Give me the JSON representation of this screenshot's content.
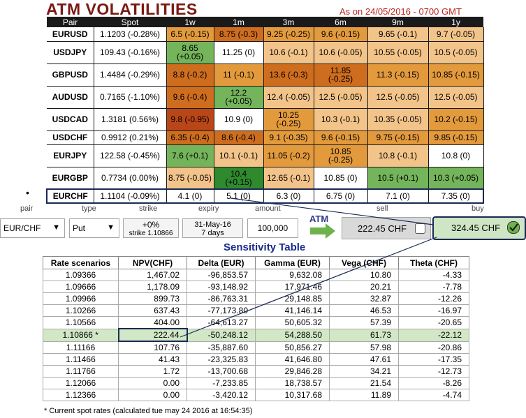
{
  "header": {
    "title": "ATM VOLATILITIES",
    "as_of": "As on 24/05/2016 - 0700 GMT"
  },
  "colors": {
    "peach": "#f3c48a",
    "orange": "#e39a3c",
    "dark_orange": "#cf6d1f",
    "red_orange": "#b94616",
    "green": "#74b45b",
    "dark_green": "#2f8a2e",
    "white": "#ffffff",
    "selection_border": "#1a2a55"
  },
  "vol_table": {
    "headers": [
      "Pair",
      "Spot",
      "1w",
      "1m",
      "3m",
      "6m",
      "9m",
      "1y"
    ],
    "rows": [
      {
        "pair": "EURUSD",
        "spot": "1.1203 (-0.28%)",
        "cells": [
          {
            "text": "6.5 (-0.15)",
            "color": "orange"
          },
          {
            "text": "8.75 (-0.3)",
            "color": "dark_orange"
          },
          {
            "text": "9.25 (-0.25)",
            "color": "orange"
          },
          {
            "text": "9.6 (-0.15)",
            "color": "orange"
          },
          {
            "text": "9.65 (-0.1)",
            "color": "peach"
          },
          {
            "text": "9.7 (-0.05)",
            "color": "peach"
          }
        ]
      },
      {
        "pair": "USDJPY",
        "spot": "109.43 (-0.16%)",
        "cells": [
          {
            "text": "8.65\n(+0.05)",
            "color": "green"
          },
          {
            "text": "11.25 (0)",
            "color": "white"
          },
          {
            "text": "10.6 (-0.1)",
            "color": "peach"
          },
          {
            "text": "10.6 (-0.05)",
            "color": "peach"
          },
          {
            "text": "10.55 (-0.05)",
            "color": "peach"
          },
          {
            "text": "10.5 (-0.05)",
            "color": "peach"
          }
        ]
      },
      {
        "pair": "GBPUSD",
        "spot": "1.4484 (-0.29%)",
        "cells": [
          {
            "text": "8.8 (-0.2)",
            "color": "dark_orange"
          },
          {
            "text": "11 (-0.1)",
            "color": "orange"
          },
          {
            "text": "13.6 (-0.3)",
            "color": "dark_orange"
          },
          {
            "text": "11.85\n(-0.25)",
            "color": "dark_orange"
          },
          {
            "text": "11.3 (-0.15)",
            "color": "orange"
          },
          {
            "text": "10.85 (-0.15)",
            "color": "orange"
          }
        ]
      },
      {
        "pair": "AUDUSD",
        "spot": "0.7165 (-1.10%)",
        "cells": [
          {
            "text": "9.6 (-0.4)",
            "color": "dark_orange"
          },
          {
            "text": "12.2\n(+0.05)",
            "color": "green"
          },
          {
            "text": "12.4 (-0.05)",
            "color": "peach"
          },
          {
            "text": "12.5 (-0.05)",
            "color": "peach"
          },
          {
            "text": "12.5 (-0.05)",
            "color": "peach"
          },
          {
            "text": "12.5 (-0.05)",
            "color": "peach"
          }
        ]
      },
      {
        "pair": "USDCAD",
        "spot": "1.3181 (0.56%)",
        "cells": [
          {
            "text": "9.8 (-0.95)",
            "color": "red_orange"
          },
          {
            "text": "10.9 (0)",
            "color": "white"
          },
          {
            "text": "10.25\n(-0.25)",
            "color": "orange"
          },
          {
            "text": "10.3 (-0.1)",
            "color": "peach"
          },
          {
            "text": "10.35 (-0.05)",
            "color": "peach"
          },
          {
            "text": "10.2 (-0.15)",
            "color": "orange"
          }
        ]
      },
      {
        "pair": "USDCHF",
        "spot": "0.9912 (0.21%)",
        "cells": [
          {
            "text": "6.35 (-0.4)",
            "color": "dark_orange"
          },
          {
            "text": "8.6 (-0.4)",
            "color": "dark_orange"
          },
          {
            "text": "9.1 (-0.35)",
            "color": "orange"
          },
          {
            "text": "9.6 (-0.15)",
            "color": "orange"
          },
          {
            "text": "9.75 (-0.15)",
            "color": "orange"
          },
          {
            "text": "9.85 (-0.15)",
            "color": "orange"
          }
        ]
      },
      {
        "pair": "EURJPY",
        "spot": "122.58 (-0.45%)",
        "cells": [
          {
            "text": "7.6 (+0.1)",
            "color": "green"
          },
          {
            "text": "10.1 (-0.1)",
            "color": "peach"
          },
          {
            "text": "11.05 (-0.2)",
            "color": "orange"
          },
          {
            "text": "10.85\n(-0.25)",
            "color": "orange"
          },
          {
            "text": "10.8 (-0.1)",
            "color": "peach"
          },
          {
            "text": "10.8 (0)",
            "color": "white"
          }
        ]
      },
      {
        "pair": "EURGBP",
        "spot": "0.7734 (0.00%)",
        "cells": [
          {
            "text": "8.75 (-0.05)",
            "color": "peach"
          },
          {
            "text": "10.4\n(+0.15)",
            "color": "dark_green"
          },
          {
            "text": "12.65 (-0.1)",
            "color": "peach"
          },
          {
            "text": "10.85 (0)",
            "color": "white"
          },
          {
            "text": "10.5 (+0.1)",
            "color": "green"
          },
          {
            "text": "10.3 (+0.05)",
            "color": "green"
          }
        ]
      },
      {
        "pair": "EURCHF",
        "spot": "1.1104 (-0.09%)",
        "selected": true,
        "cells": [
          {
            "text": "4.1 (0)",
            "color": "white"
          },
          {
            "text": "5.1 (0)",
            "color": "white"
          },
          {
            "text": "6.3 (0)",
            "color": "white"
          },
          {
            "text": "6.75 (0)",
            "color": "white"
          },
          {
            "text": "7.1 (0)",
            "color": "white"
          },
          {
            "text": "7.35 (0)",
            "color": "white"
          }
        ]
      }
    ]
  },
  "option_form": {
    "labels": {
      "pair": "pair",
      "type": "type",
      "strike": "strike",
      "expiry": "expiry",
      "amount": "amount",
      "sell": "sell",
      "buy": "buy"
    },
    "pair_value": "EUR/CHF",
    "type_value": "Put",
    "strike_main": "+0%",
    "strike_sub": "strike 1.10866",
    "expiry_main": "31-May-16",
    "expiry_sub": "7 days",
    "amount_value": "100,000",
    "atm_label": "ATM",
    "sell_price": "222.45 CHF",
    "buy_price": "324.45 CHF",
    "buy_checked": true,
    "sell_checked": false
  },
  "sensitivity": {
    "title": "Sensitivity Table",
    "headers": [
      "Rate scenarios",
      "NPV(CHF)",
      "Delta (EUR)",
      "Gamma (EUR)",
      "Vega (CHF)",
      "Theta (CHF)"
    ],
    "rows": [
      [
        "1.09366",
        "1,467.02",
        "-96,853.57",
        "9,632.08",
        "10.80",
        "-4.33"
      ],
      [
        "1.09666",
        "1,178.09",
        "-93,148.92",
        "17,971.46",
        "20.21",
        "-7.78"
      ],
      [
        "1.09966",
        "899.73",
        "-86,763.31",
        "29,148.85",
        "32.87",
        "-12.26"
      ],
      [
        "1.10266",
        "637.43",
        "-77,173.80",
        "41,146.14",
        "46.53",
        "-16.97"
      ],
      [
        "1.10566",
        "404.00",
        "-64,613.27",
        "50,605.32",
        "57.39",
        "-20.65"
      ],
      [
        "1.10866 *",
        "222.44",
        "-50,248.12",
        "54,288.50",
        "61.73",
        "-22.12"
      ],
      [
        "1.11166",
        "107.76",
        "-35,887.60",
        "50,856.27",
        "57.98",
        "-20.86"
      ],
      [
        "1.11466",
        "41.43",
        "-23,325.83",
        "41,646.80",
        "47.61",
        "-17.35"
      ],
      [
        "1.11766",
        "1.72",
        "-13,700.68",
        "29,846.28",
        "34.21",
        "-12.73"
      ],
      [
        "1.12066",
        "0.00",
        "-7,233.85",
        "18,738.57",
        "21.54",
        "-8.26"
      ],
      [
        "1.12366",
        "0.00",
        "-3,420.12",
        "10,317.68",
        "11.89",
        "-4.74"
      ]
    ],
    "current_row_index": 5,
    "footnote": "* Current spot rates (calculated tue may 24 2016 at 16:54:35)"
  }
}
